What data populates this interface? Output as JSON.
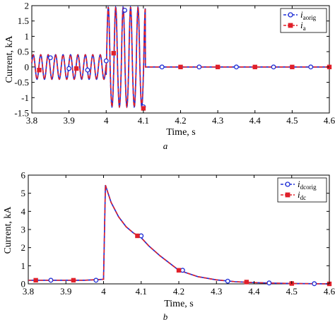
{
  "colors": {
    "original": "#1f2fd6",
    "model": "#e0202a",
    "frame": "#000000",
    "background": "#ffffff"
  },
  "chart_data": [
    {
      "type": "line",
      "caption": "a",
      "xlabel": "Time, s",
      "ylabel": "Current, kA",
      "xlim": [
        3.8,
        4.6
      ],
      "ylim": [
        -1.5,
        2
      ],
      "xticks": [
        "3.8",
        "3.9",
        "4",
        "4.1",
        "4.2",
        "4.3",
        "4.4",
        "4.5",
        "4.6"
      ],
      "yticks": [
        "-1.5",
        "-1",
        "-0.5",
        "0",
        "0.5",
        "1",
        "1.5",
        "2"
      ],
      "grid": false,
      "legend_position": "top-right",
      "series": [
        {
          "name": "i_aorig",
          "label_main": "i",
          "label_sub": "aorig",
          "style": "dashed, circle markers",
          "color": "#1f2fd6",
          "description": "50 Hz sinusoid amplitude 0.4 kA before fault at 4.0 s, amplitude about 1.9 kA during fault, zero after breaker opening at about 4.105 s",
          "pre_fault": {
            "t_start": 3.8,
            "t_end": 4.0,
            "frequency_hz": 50,
            "amplitude": 0.4
          },
          "fault": {
            "t_start": 4.0,
            "t_end": 4.105,
            "frequency_hz": 50,
            "peak_max": 1.95,
            "trough_min": -1.3
          },
          "post_fault": {
            "t_start": 4.105,
            "t_end": 4.6,
            "value": 0
          },
          "markers": [
            {
              "x": 3.85,
              "y": 0.3
            },
            {
              "x": 3.9,
              "y": -0.05
            },
            {
              "x": 3.95,
              "y": -0.1
            },
            {
              "x": 4.0,
              "y": 0.2
            },
            {
              "x": 4.05,
              "y": 1.85
            },
            {
              "x": 4.1,
              "y": -1.3
            },
            {
              "x": 4.15,
              "y": 0
            },
            {
              "x": 4.25,
              "y": 0
            },
            {
              "x": 4.35,
              "y": 0
            },
            {
              "x": 4.45,
              "y": 0
            },
            {
              "x": 4.55,
              "y": 0
            }
          ]
        },
        {
          "name": "i_a",
          "label_main": "i",
          "label_sub": "a",
          "style": "dashed, square markers",
          "color": "#e0202a",
          "description": "overlaps i_aorig",
          "markers": [
            {
              "x": 3.82,
              "y": -0.1
            },
            {
              "x": 3.92,
              "y": -0.05
            },
            {
              "x": 4.02,
              "y": 0.45
            },
            {
              "x": 4.1,
              "y": -1.35
            },
            {
              "x": 4.2,
              "y": 0
            },
            {
              "x": 4.3,
              "y": 0
            },
            {
              "x": 4.4,
              "y": 0
            },
            {
              "x": 4.5,
              "y": 0
            },
            {
              "x": 4.6,
              "y": 0
            }
          ]
        }
      ]
    },
    {
      "type": "line",
      "caption": "b",
      "xlabel": "Time, s",
      "ylabel": "Current, kA",
      "xlim": [
        3.8,
        4.6
      ],
      "ylim": [
        0,
        6
      ],
      "xticks": [
        "3.8",
        "3.9",
        "4",
        "4.1",
        "4.2",
        "4.3",
        "4.4",
        "4.5",
        "4.6"
      ],
      "yticks": [
        "0",
        "1",
        "2",
        "3",
        "4",
        "5",
        "6"
      ],
      "grid": false,
      "legend_position": "top-right",
      "series": [
        {
          "name": "i_dcorig",
          "label_main": "i",
          "label_sub": "dcorig",
          "style": "dashed, circle markers",
          "color": "#1f2fd6",
          "x": [
            3.8,
            3.85,
            3.9,
            3.95,
            4.0,
            4.005,
            4.02,
            4.04,
            4.06,
            4.08,
            4.1,
            4.12,
            4.15,
            4.2,
            4.25,
            4.3,
            4.35,
            4.4,
            4.45,
            4.5,
            4.55,
            4.6
          ],
          "y": [
            0.2,
            0.2,
            0.2,
            0.2,
            0.25,
            5.45,
            4.5,
            3.7,
            3.15,
            2.8,
            2.55,
            2.1,
            1.55,
            0.75,
            0.4,
            0.22,
            0.12,
            0.07,
            0.04,
            0.02,
            0.01,
            0.0
          ],
          "markers": [
            {
              "x": 3.86,
              "y": 0.2
            },
            {
              "x": 3.98,
              "y": 0.2
            },
            {
              "x": 4.1,
              "y": 2.65
            },
            {
              "x": 4.21,
              "y": 0.75
            },
            {
              "x": 4.33,
              "y": 0.15
            },
            {
              "x": 4.44,
              "y": 0.05
            },
            {
              "x": 4.56,
              "y": 0.01
            }
          ]
        },
        {
          "name": "i_dc",
          "label_main": "i",
          "label_sub": "dc",
          "style": "dashed, square markers",
          "color": "#e0202a",
          "description": "overlaps i_dcorig",
          "markers": [
            {
              "x": 3.82,
              "y": 0.2
            },
            {
              "x": 3.92,
              "y": 0.2
            },
            {
              "x": 4.09,
              "y": 2.65
            },
            {
              "x": 4.2,
              "y": 0.75
            },
            {
              "x": 4.38,
              "y": 0.1
            },
            {
              "x": 4.5,
              "y": 0.02
            },
            {
              "x": 4.6,
              "y": 0.0
            }
          ]
        }
      ]
    }
  ]
}
